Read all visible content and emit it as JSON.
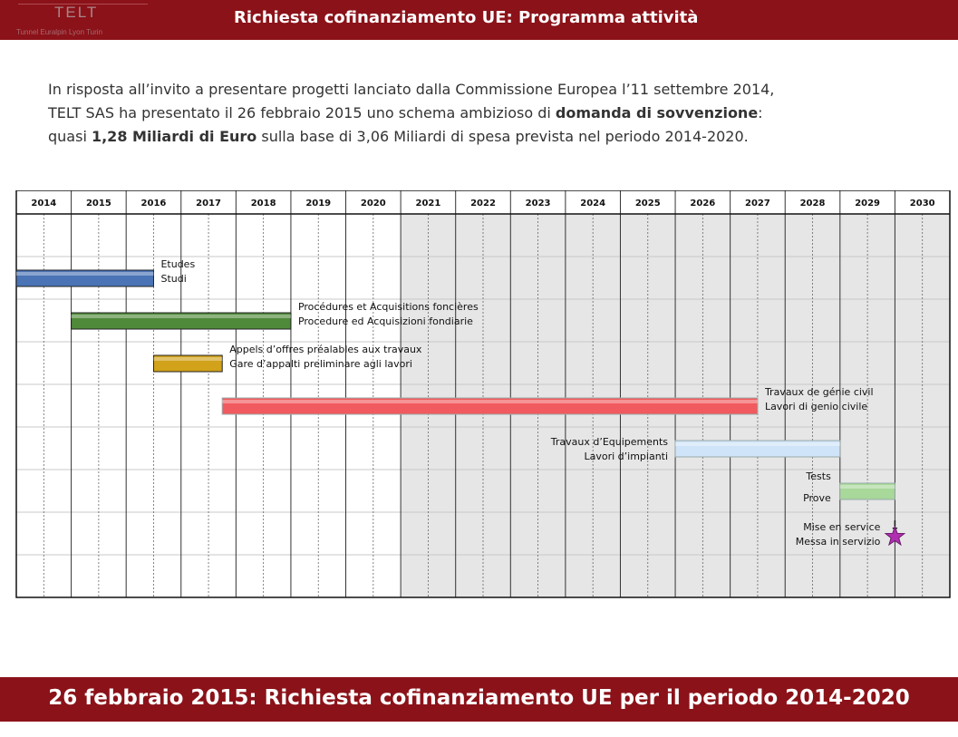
{
  "header": {
    "title": "Richiesta cofinanziamento UE: Programma attività",
    "logo": {
      "name": "TELT",
      "subtitle": "Tunnel Euralpin Lyon Turin"
    }
  },
  "intro": {
    "line1": "In risposta all’invito a presentare progetti lanciato dalla Commissione Europea l’11 settembre 2014,",
    "line2_a": "TELT SAS ha presentato il 26 febbraio 2015 uno schema ambizioso di ",
    "line2_b": "domanda di sovvenzione",
    "line2_c": ":",
    "line3_a": "quasi ",
    "line3_b": "1,28 Miliardi di Euro",
    "line3_c": " sulla base di 3,06 Miliardi di spesa prevista nel periodo 2014-2020."
  },
  "gantt": {
    "years": [
      "2014",
      "2015",
      "2016",
      "2017",
      "2018",
      "2019",
      "2020",
      "2021",
      "2022",
      "2023",
      "2024",
      "2025",
      "2026",
      "2027",
      "2028",
      "2029",
      "2030"
    ],
    "shaded_from": "2021",
    "colors": {
      "studi": "#4a74b6",
      "procedure": "#4f8a3a",
      "gare": "#d1a21a",
      "lavori_civili": "#f15a5e",
      "impianti": "#cfe4f8",
      "prove": "#a8d89a",
      "milestone": "#b02fb0",
      "shading": "#e6e6e6"
    },
    "tasks": [
      {
        "id": "studi",
        "label_fr": "Etudes",
        "label_it": "Studi",
        "start": 2014.0,
        "end": 2016.5
      },
      {
        "id": "procedure",
        "label_fr": "Procédures et Acquisitions foncières",
        "label_it": "Procedure ed Acquisizioni fondiarie",
        "start": 2015.0,
        "end": 2019.0
      },
      {
        "id": "gare",
        "label_fr": "Appels d’offres préalables aux travaux",
        "label_it": "Gare d’appalti preliminare agli lavori",
        "start": 2016.5,
        "end": 2017.75
      },
      {
        "id": "lavori_civili",
        "label_fr": "Travaux de génie civil",
        "label_it": "Lavori di genio civile",
        "start": 2017.75,
        "end": 2027.5
      },
      {
        "id": "impianti",
        "label_fr": "Travaux d’Equipements",
        "label_it": "Lavori d’impianti",
        "start": 2026.0,
        "end": 2029.0
      },
      {
        "id": "prove",
        "label_fr": "Tests",
        "label_it": "Prove",
        "start": 2029.0,
        "end": 2030.0
      },
      {
        "id": "messa_in_servizio",
        "label_fr": "Mise en service",
        "label_it": "Messa in servizio",
        "milestone": 2030.0
      }
    ]
  },
  "footer": {
    "title": "26 febbraio 2015: Richiesta cofinanziamento UE per il periodo 2014-2020"
  }
}
